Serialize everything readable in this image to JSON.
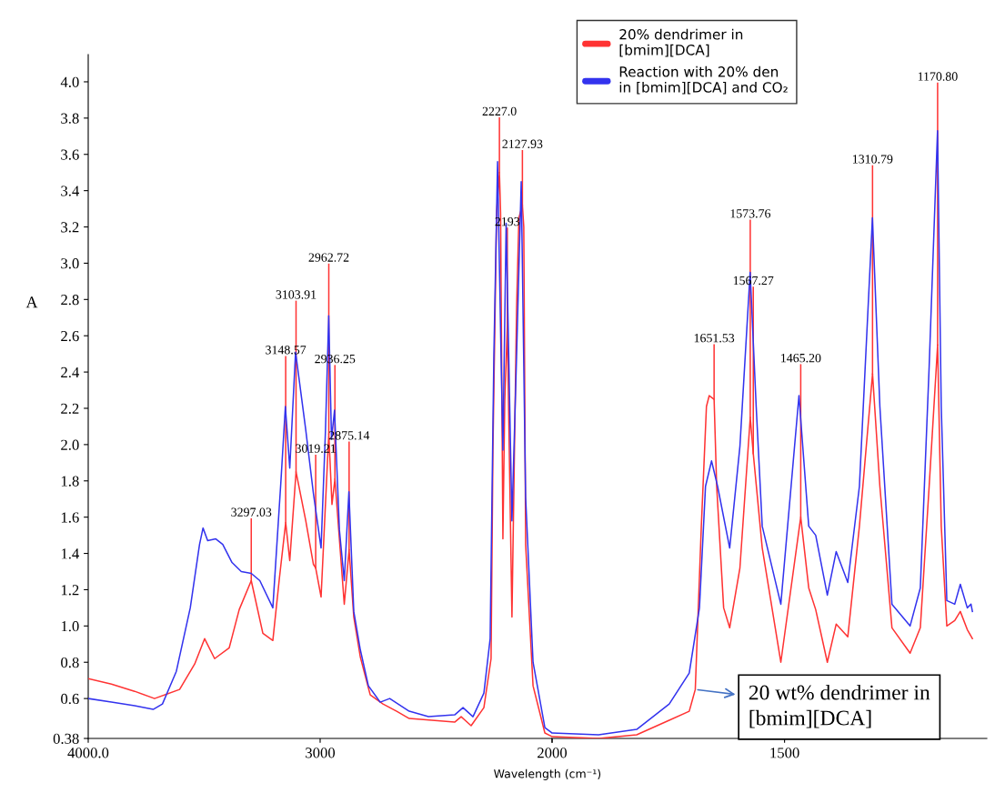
{
  "chart_data": [
    {
      "type": "line",
      "xlabel": "Wavelength (cm⁻¹)",
      "ylabel": "A",
      "xlim": [
        4000,
        2000
      ],
      "xticks": [
        {
          "value": 4000,
          "label": "4000.0"
        },
        3000,
        {
          "value": 2000,
          "label": null
        }
      ],
      "ylim": [
        0.38,
        4.15
      ],
      "yticks": [
        0.38,
        {
          "value": 0.6,
          "label": "0.6"
        },
        {
          "value": 0.8,
          "label": "0.8"
        },
        {
          "value": 1.0,
          "label": "1.0"
        },
        {
          "value": 1.2,
          "label": "1.2"
        },
        {
          "value": 1.4,
          "label": "1.4"
        },
        {
          "value": 1.6,
          "label": "1.6"
        },
        {
          "value": 1.8,
          "label": "1.8"
        },
        {
          "value": 2.0,
          "label": "2.0"
        },
        {
          "value": 2.2,
          "label": "2.2"
        },
        {
          "value": 2.4,
          "label": "2.4"
        },
        {
          "value": 2.6,
          "label": "2.6"
        },
        {
          "value": 2.8,
          "label": "2.8"
        },
        {
          "value": 3.0,
          "label": "3.0"
        },
        {
          "value": 3.2,
          "label": "3.2"
        },
        {
          "value": 3.4,
          "label": "3.4"
        },
        {
          "value": 3.6,
          "label": "3.6"
        },
        {
          "value": 3.8,
          "label": "3.8"
        },
        {
          "value": 4.0,
          "label": "4.0"
        }
      ],
      "marker": "none",
      "line_style": "solid",
      "series": [
        {
          "color": "#ff3333",
          "x": [
            4000,
            3900,
            3800,
            3714,
            3606,
            3541,
            3498,
            3455,
            3392,
            3349,
            3297.03,
            3247,
            3204,
            3176,
            3148.57,
            3131,
            3103.91,
            3062,
            3029,
            3019.21,
            2996,
            2962.72,
            2949,
            2936.25,
            2896,
            2875.14,
            2855,
            2827,
            2784,
            2729,
            2670,
            2616,
            2420,
            2392,
            2349,
            2294,
            2263,
            2255,
            2239,
            2227.0,
            2222,
            2212,
            2204,
            2193,
            2173,
            2153,
            2143,
            2127.93,
            2122,
            2114,
            2082,
            2031,
            2000
          ],
          "values": [
            0.71,
            0.68,
            0.64,
            0.6,
            0.65,
            0.79,
            0.93,
            0.82,
            0.88,
            1.09,
            1.25,
            0.96,
            0.92,
            1.26,
            1.57,
            1.36,
            1.85,
            1.58,
            1.34,
            1.32,
            1.16,
            2.06,
            1.67,
            1.81,
            1.12,
            1.42,
            1.05,
            0.83,
            0.62,
            0.57,
            0.53,
            0.49,
            0.47,
            0.5,
            0.45,
            0.55,
            0.82,
            1.97,
            3.28,
            3.5,
            3.28,
            1.48,
            2.24,
            2.65,
            1.05,
            2.75,
            3.25,
            3.32,
            3.2,
            1.45,
            0.67,
            0.41,
            0.39
          ]
        },
        {
          "color": "#3333ee",
          "x": [
            4000,
            3900,
            3800,
            3720,
            3680,
            3620,
            3560,
            3520,
            3505,
            3485,
            3450,
            3420,
            3380,
            3340,
            3297,
            3260,
            3204,
            3169,
            3150,
            3131,
            3106,
            3062,
            3029,
            2996,
            2977,
            2963,
            2951,
            2938,
            2917,
            2896,
            2876,
            2855,
            2827,
            2792,
            2741,
            2700,
            2616,
            2533,
            2420,
            2384,
            2341,
            2294,
            2267,
            2251,
            2235,
            2220,
            2212,
            2198,
            2173,
            2153,
            2133,
            2114,
            2082,
            2031,
            2000
          ],
          "values": [
            0.6,
            0.58,
            0.56,
            0.54,
            0.57,
            0.75,
            1.1,
            1.45,
            1.54,
            1.47,
            1.48,
            1.45,
            1.35,
            1.3,
            1.29,
            1.25,
            1.1,
            1.8,
            2.21,
            1.87,
            2.51,
            2.08,
            1.73,
            1.43,
            2.08,
            2.71,
            2.03,
            2.19,
            1.53,
            1.25,
            1.74,
            1.08,
            0.87,
            0.67,
            0.58,
            0.6,
            0.53,
            0.5,
            0.51,
            0.55,
            0.5,
            0.63,
            0.93,
            2.49,
            3.56,
            2.49,
            1.97,
            3.22,
            1.58,
            2.49,
            3.45,
            1.71,
            0.8,
            0.44,
            0.41
          ]
        }
      ],
      "annotations": [
        {
          "text": "3297.03",
          "x": 3297.03,
          "y": 1.25
        },
        {
          "text": "3148.57",
          "x": 3148.57,
          "y": 1.57
        },
        {
          "text": "3103.91",
          "x": 3103.91,
          "y": 1.85
        },
        {
          "text": "3019.21",
          "x": 3019.21,
          "y": 1.32
        },
        {
          "text": "2962.72",
          "x": 2962.72,
          "y": 2.06
        },
        {
          "text": "2936.25",
          "x": 2936.25,
          "y": 1.81
        },
        {
          "text": "2875.14",
          "x": 2875.14,
          "y": 1.42
        },
        {
          "text": "2227.0",
          "x": 2227.0,
          "y": 3.5
        },
        {
          "text": "2193",
          "x": 2193,
          "y": 2.65
        },
        {
          "text": "2127.93",
          "x": 2127.93,
          "y": 3.32
        }
      ]
    },
    {
      "type": "line",
      "xlim": [
        2000,
        1065
      ],
      "xticks": [
        2000,
        1500
      ],
      "ylim": [
        0.38,
        4.15
      ],
      "tick_labels": "x",
      "legend": "top",
      "marker": "none",
      "line_style": "solid",
      "series": [
        {
          "name": "20% dendrimer in\n[bmim][DCA]",
          "color": "#ff3333",
          "x": [
            2000,
            1900,
            1818,
            1748,
            1705,
            1692,
            1679,
            1668,
            1662,
            1651.53,
            1646,
            1631,
            1618,
            1596,
            1573.76,
            1567.27,
            1548,
            1508,
            1465.2,
            1448,
            1433,
            1408,
            1389,
            1364,
            1339,
            1310.79,
            1295,
            1269,
            1230,
            1208,
            1189,
            1170.8,
            1163,
            1151,
            1134,
            1122,
            1107,
            1096
          ],
          "values": [
            0.39,
            0.38,
            0.4,
            0.48,
            0.53,
            0.65,
            1.55,
            2.21,
            2.27,
            2.25,
            1.77,
            1.1,
            0.99,
            1.32,
            2.15,
            1.95,
            1.43,
            0.8,
            1.6,
            1.21,
            1.09,
            0.8,
            1.01,
            0.94,
            1.55,
            2.39,
            1.77,
            0.99,
            0.85,
            0.99,
            1.77,
            2.55,
            1.55,
            1.0,
            1.03,
            1.08,
            0.98,
            0.93
          ]
        },
        {
          "name": "Reaction with 20% den\nin [bmim][DCA] and CO₂",
          "color": "#3333ee",
          "x": [
            2000,
            1900,
            1818,
            1748,
            1705,
            1683,
            1670,
            1657,
            1644,
            1618,
            1596,
            1574,
            1561,
            1548,
            1508,
            1469,
            1448,
            1433,
            1408,
            1389,
            1364,
            1339,
            1311,
            1295,
            1269,
            1230,
            1208,
            1189,
            1171,
            1163,
            1151,
            1134,
            1122,
            1107,
            1099,
            1096
          ],
          "values": [
            0.41,
            0.4,
            0.43,
            0.57,
            0.74,
            1.1,
            1.77,
            1.91,
            1.77,
            1.43,
            1.99,
            2.95,
            2.21,
            1.55,
            1.12,
            2.27,
            1.55,
            1.5,
            1.17,
            1.41,
            1.24,
            1.77,
            3.25,
            2.21,
            1.12,
            1.0,
            1.21,
            2.43,
            3.73,
            2.21,
            1.14,
            1.12,
            1.23,
            1.1,
            1.12,
            1.08
          ]
        }
      ],
      "annotations": [
        {
          "text": "1651.53",
          "x": 1651.53,
          "y": 2.25
        },
        {
          "text": "1573.76",
          "x": 1573.76,
          "y": 2.15
        },
        {
          "text": "1567.27",
          "x": 1567.27,
          "y": 1.95
        },
        {
          "text": "1465.20",
          "x": 1465.2,
          "y": 1.6
        },
        {
          "text": "1310.79",
          "x": 1310.79,
          "y": 2.39
        },
        {
          "text": "1170.80",
          "x": 1170.8,
          "y": 2.55
        },
        {
          "text": "20 wt% dendrimer in\n[bmim][DCA]",
          "x": 1692,
          "y": 0.65
        }
      ]
    }
  ]
}
